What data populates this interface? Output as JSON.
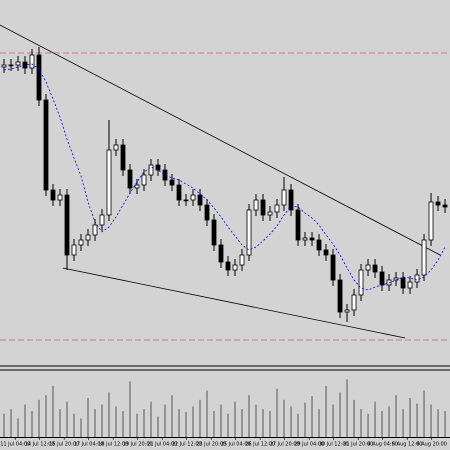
{
  "chart_data": {
    "type": "candlestick",
    "color_up": "#ffffff",
    "color_down": "#000000",
    "xlim": [
      -0.57,
      63.71
    ],
    "ylim": [
      0,
      365
    ],
    "open": [
      298,
      300,
      300,
      303,
      297,
      310,
      265,
      175,
      165,
      170,
      110,
      120,
      125,
      130,
      140,
      150,
      215,
      220,
      195,
      177,
      180,
      190,
      200,
      195,
      185,
      180,
      165,
      165,
      170,
      160,
      145,
      120,
      103,
      95,
      100,
      110,
      155,
      165,
      150,
      153,
      160,
      175,
      155,
      125,
      127,
      125,
      115,
      110,
      85,
      53,
      55,
      70,
      95,
      100,
      93,
      80,
      85,
      87,
      77,
      83,
      90,
      125,
      163,
      160
    ],
    "high": [
      306,
      306,
      309,
      309,
      316,
      318,
      271,
      181,
      176,
      176,
      126,
      131,
      136,
      146,
      156,
      245,
      226,
      226,
      201,
      186,
      196,
      206,
      206,
      201,
      191,
      186,
      171,
      176,
      176,
      166,
      151,
      126,
      109,
      106,
      116,
      161,
      171,
      171,
      159,
      166,
      188,
      181,
      161,
      133,
      133,
      131,
      121,
      116,
      91,
      61,
      76,
      101,
      106,
      106,
      99,
      91,
      93,
      93,
      89,
      96,
      131,
      172,
      169,
      166
    ],
    "low": [
      292,
      294,
      294,
      291,
      291,
      259,
      169,
      159,
      159,
      95,
      104,
      114,
      119,
      124,
      134,
      144,
      209,
      189,
      171,
      171,
      174,
      184,
      189,
      179,
      174,
      159,
      159,
      159,
      154,
      139,
      114,
      97,
      89,
      89,
      94,
      104,
      149,
      144,
      144,
      147,
      154,
      149,
      119,
      119,
      119,
      109,
      104,
      79,
      47,
      43,
      49,
      64,
      89,
      87,
      74,
      74,
      79,
      71,
      71,
      77,
      84,
      119,
      154,
      152
    ],
    "close": [
      300,
      300,
      303,
      297,
      310,
      265,
      175,
      165,
      170,
      110,
      120,
      125,
      130,
      140,
      150,
      215,
      220,
      195,
      177,
      180,
      190,
      200,
      195,
      185,
      180,
      165,
      165,
      170,
      160,
      145,
      120,
      103,
      95,
      100,
      110,
      155,
      165,
      150,
      153,
      160,
      175,
      155,
      125,
      127,
      125,
      115,
      110,
      85,
      53,
      55,
      70,
      95,
      100,
      93,
      80,
      85,
      87,
      77,
      83,
      90,
      125,
      163,
      160,
      158
    ],
    "ma": {
      "color": "#0000ff",
      "values": [
        295,
        296,
        298,
        300,
        301,
        296,
        283,
        266,
        248,
        226,
        207,
        189,
        163,
        143,
        133,
        138,
        148,
        160,
        172,
        183,
        193,
        198,
        195,
        190,
        187,
        185,
        181,
        177,
        171,
        165,
        157,
        148,
        138,
        129,
        120,
        115,
        118,
        124,
        131,
        139,
        150,
        159,
        158,
        152,
        147,
        140,
        130,
        121,
        110,
        97,
        85,
        77,
        75,
        78,
        80,
        82,
        85,
        88,
        87,
        85,
        88,
        95,
        105,
        118
      ]
    },
    "volume": {
      "ylim": [
        0,
        70
      ],
      "values": [
        25,
        30,
        20,
        35,
        28,
        40,
        45,
        55,
        30,
        38,
        25,
        20,
        42,
        30,
        35,
        48,
        33,
        28,
        60,
        25,
        30,
        38,
        22,
        35,
        45,
        30,
        27,
        33,
        40,
        50,
        28,
        35,
        25,
        38,
        30,
        45,
        35,
        30,
        28,
        52,
        40,
        33,
        25,
        37,
        44,
        30,
        55,
        35,
        48,
        62,
        40,
        30,
        25,
        38,
        28,
        33,
        45,
        30,
        42,
        36,
        50,
        35,
        30,
        28
      ]
    },
    "trendlines": [
      {
        "x": [
          -0.6,
          62.3
        ],
        "values": [
          340,
          110
        ]
      },
      {
        "x": [
          8.4,
          57.3
        ],
        "values": [
          97,
          27
        ]
      }
    ],
    "levels": {
      "color": "#d87093",
      "values": [
        312,
        25
      ]
    },
    "xticks": [
      {
        "value": 1.6,
        "label": "11 Jul 04:00"
      },
      {
        "value": 5.1,
        "label": "14 Jul 12:00"
      },
      {
        "value": 8.6,
        "label": "15 Jul 20:00"
      },
      {
        "value": 12.1,
        "label": "17 Jul 04:00"
      },
      {
        "value": 15.6,
        "label": "18 Jul 12:00"
      },
      {
        "value": 19.1,
        "label": "19 Jul 20:00"
      },
      {
        "value": 22.6,
        "label": "21 Jul 04:00"
      },
      {
        "value": 26.1,
        "label": "22 Jul 12:00"
      },
      {
        "value": 29.6,
        "label": "23 Jul 20:00"
      },
      {
        "value": 33.1,
        "label": "25 Jul 04:00"
      },
      {
        "value": 36.6,
        "label": "26 Jul 12:00"
      },
      {
        "value": 40.1,
        "label": "27 Jul 20:00"
      },
      {
        "value": 43.6,
        "label": "29 Jul 04:00"
      },
      {
        "value": 47.1,
        "label": "30 Jul 12:00"
      },
      {
        "value": 50.6,
        "label": "31 Jul 20:00"
      },
      {
        "value": 54.1,
        "label": "4 Aug 04:00"
      },
      {
        "value": 57.6,
        "label": "5 Aug 12:00"
      },
      {
        "value": 61.1,
        "label": "6 Aug 20:00"
      }
    ]
  }
}
